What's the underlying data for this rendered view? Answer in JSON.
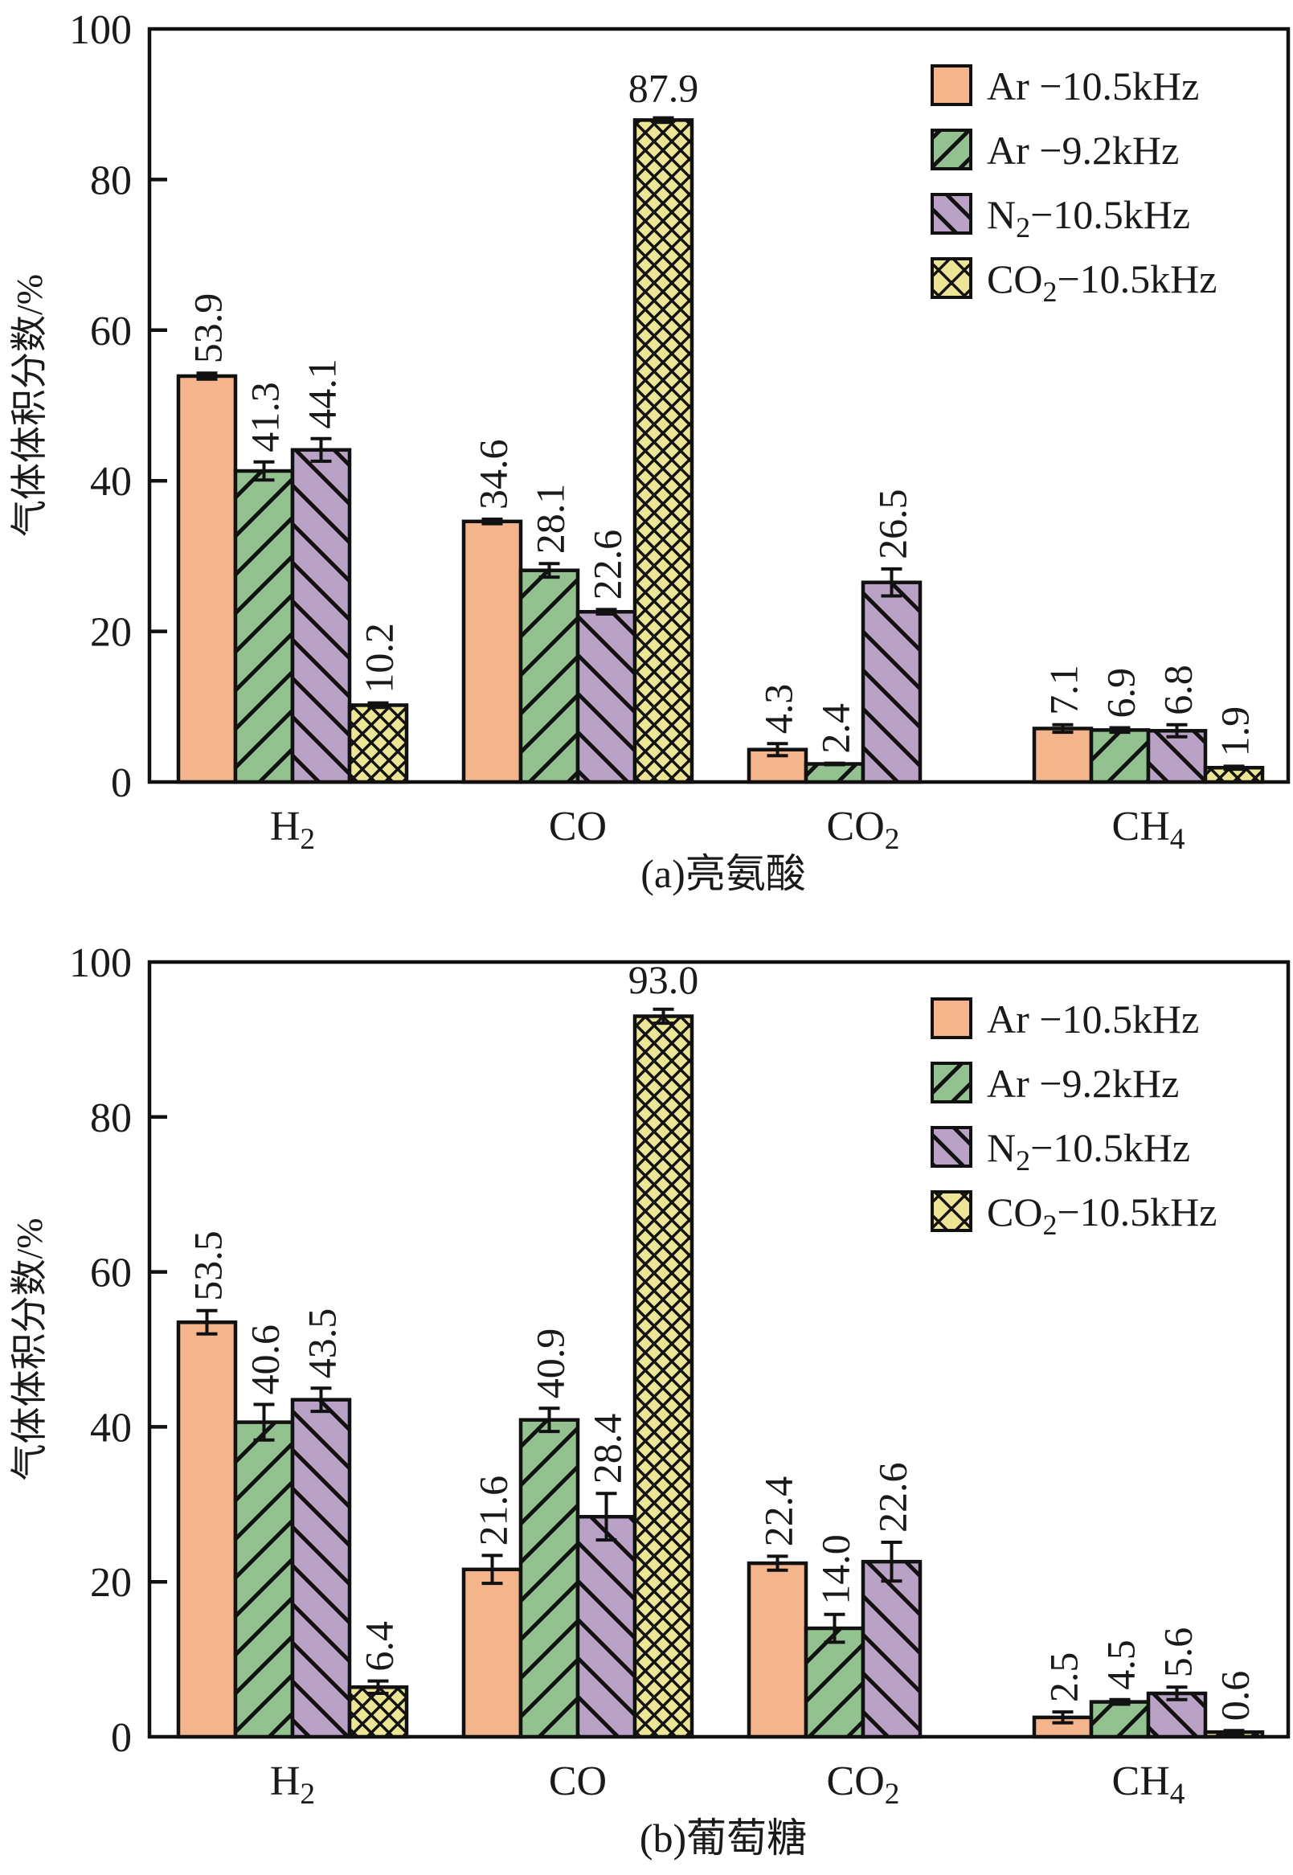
{
  "colors": {
    "ar_10_5": "#f4b48c",
    "ar_9_2": "#93c18f",
    "n2_10_5": "#b9a2c6",
    "co2_10_5": "#ede596",
    "stroke": "#111111"
  },
  "chart_data": [
    {
      "type": "bar",
      "title": "(a)亮氨酸",
      "xlabel": "",
      "ylabel": "气体体积分数/%",
      "ylim": [
        0,
        100
      ],
      "yticks": [
        "0",
        "20",
        "40",
        "60",
        "80",
        "100"
      ],
      "categories": [
        "H₂",
        "CO",
        "CO₂",
        "CH₄"
      ],
      "legend_position": "top-right",
      "series": [
        {
          "name": "Ar −10.5kHz",
          "pattern": "solid",
          "values": [
            53.9,
            34.6,
            4.3,
            7.1
          ],
          "labels": [
            "53.9",
            "34.6",
            "4.3",
            "7.1"
          ],
          "errors": [
            0.4,
            0.3,
            0.8,
            0.5
          ]
        },
        {
          "name": "Ar −9.2kHz",
          "pattern": "forward-diagonal",
          "values": [
            41.3,
            28.1,
            2.4,
            6.9
          ],
          "labels": [
            "41.3",
            "28.1",
            "2.4",
            "6.9"
          ],
          "errors": [
            1.2,
            0.9,
            0.1,
            0.3
          ]
        },
        {
          "name": "N₂−10.5kHz",
          "pattern": "backward-diagonal",
          "values": [
            44.1,
            22.6,
            26.5,
            6.8
          ],
          "labels": [
            "44.1",
            "22.6",
            "26.5",
            "6.8"
          ],
          "errors": [
            1.5,
            0.3,
            1.8,
            0.8
          ]
        },
        {
          "name": "CO₂−10.5kHz",
          "pattern": "crosshatch",
          "values": [
            10.2,
            87.9,
            null,
            1.9
          ],
          "labels": [
            "10.2",
            "87.9",
            "",
            "1.9"
          ],
          "errors": [
            0.3,
            0.3,
            0,
            0.2
          ]
        }
      ]
    },
    {
      "type": "bar",
      "title": "(b)葡萄糖",
      "xlabel": "",
      "ylabel": "气体体积分数/%",
      "ylim": [
        0,
        100
      ],
      "yticks": [
        "0",
        "20",
        "40",
        "60",
        "80",
        "100"
      ],
      "categories": [
        "H₂",
        "CO",
        "CO₂",
        "CH₄"
      ],
      "legend_position": "top-right",
      "series": [
        {
          "name": "Ar −10.5kHz",
          "pattern": "solid",
          "values": [
            53.5,
            21.6,
            22.4,
            2.5
          ],
          "labels": [
            "53.5",
            "21.6",
            "22.4",
            "2.5"
          ],
          "errors": [
            1.5,
            1.8,
            0.9,
            0.7
          ]
        },
        {
          "name": "Ar −9.2kHz",
          "pattern": "forward-diagonal",
          "values": [
            40.6,
            40.9,
            14.0,
            4.5
          ],
          "labels": [
            "40.6",
            "40.9",
            "14.0",
            "4.5"
          ],
          "errors": [
            2.3,
            1.5,
            1.8,
            0.3
          ]
        },
        {
          "name": "N₂−10.5kHz",
          "pattern": "backward-diagonal",
          "values": [
            43.5,
            28.4,
            22.6,
            5.6
          ],
          "labels": [
            "43.5",
            "28.4",
            "22.6",
            "5.6"
          ],
          "errors": [
            1.5,
            3.0,
            2.5,
            0.8
          ]
        },
        {
          "name": "CO₂−10.5kHz",
          "pattern": "crosshatch",
          "values": [
            6.4,
            93.0,
            null,
            0.6
          ],
          "labels": [
            "6.4",
            "93.0",
            "",
            "0.6"
          ],
          "errors": [
            0.8,
            0.9,
            0,
            0.2
          ]
        }
      ]
    }
  ]
}
